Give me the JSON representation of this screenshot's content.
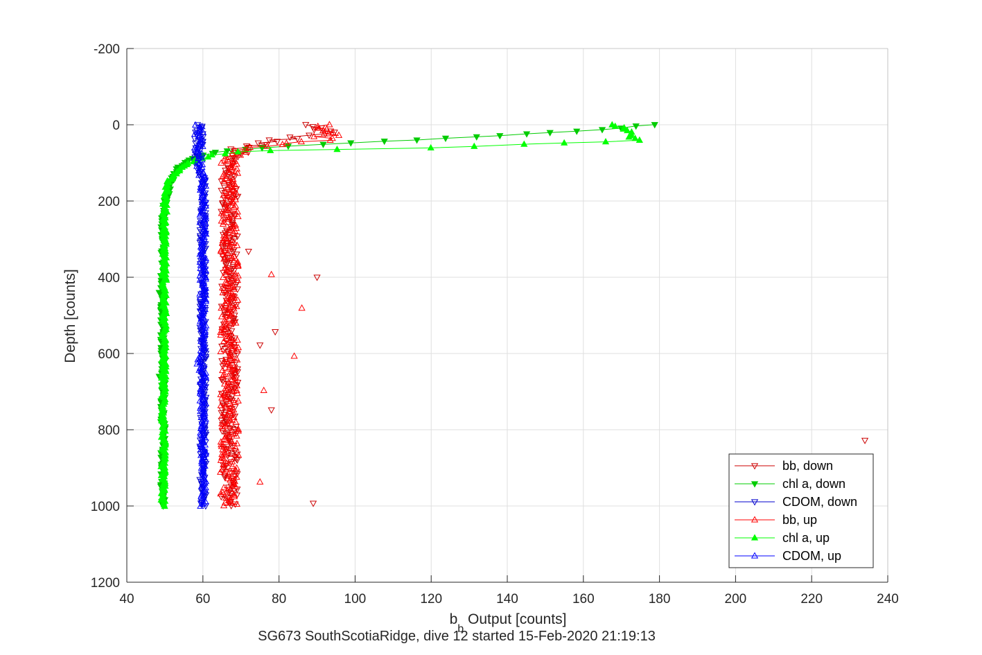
{
  "chart_data": {
    "type": "scatter",
    "xlabel_main": "b",
    "xlabel_sub": "b",
    "xlabel_rest": " Output [counts]",
    "ylabel": "Depth [counts]",
    "subtitle": "SG673 SouthScotiaRidge, dive 12 started 15-Feb-2020 21:19:13",
    "xlim": [
      40,
      240
    ],
    "ylim": [
      -200,
      1200
    ],
    "y_reversed": true,
    "grid": true,
    "legend_position": "bottom-right",
    "x_ticks": [
      "40",
      "60",
      "80",
      "100",
      "120",
      "140",
      "160",
      "180",
      "200",
      "220",
      "240"
    ],
    "y_ticks": [
      "-200",
      "0",
      "200",
      "400",
      "600",
      "800",
      "1000",
      "1200"
    ],
    "series": [
      {
        "name": "bb, down",
        "color": "#cc0000",
        "marker": "triangle-down",
        "filled": false,
        "profile": [
          [
            0,
            86
          ],
          [
            10,
            91
          ],
          [
            20,
            93
          ],
          [
            30,
            86
          ],
          [
            40,
            80
          ],
          [
            50,
            75
          ],
          [
            60,
            70
          ],
          [
            80,
            68
          ],
          [
            100,
            67
          ],
          [
            150,
            67
          ],
          [
            200,
            67
          ],
          [
            300,
            67
          ],
          [
            400,
            67
          ],
          [
            500,
            67
          ],
          [
            600,
            67
          ],
          [
            700,
            67
          ],
          [
            800,
            67
          ],
          [
            900,
            67
          ],
          [
            1000,
            67
          ]
        ],
        "spread": 2.2,
        "outliers": [
          [
            234,
            828
          ],
          [
            90,
            400
          ],
          [
            89,
            993
          ],
          [
            79,
            543
          ],
          [
            78,
            748
          ],
          [
            75,
            578
          ],
          [
            72,
            332
          ]
        ]
      },
      {
        "name": "chl a, down",
        "color": "#00cc00",
        "marker": "triangle-down",
        "filled": true,
        "profile": [
          [
            0,
            179
          ],
          [
            10,
            168
          ],
          [
            20,
            152
          ],
          [
            30,
            135
          ],
          [
            40,
            116
          ],
          [
            50,
            95
          ],
          [
            60,
            75
          ],
          [
            70,
            65
          ],
          [
            80,
            60
          ],
          [
            90,
            57
          ],
          [
            100,
            55
          ],
          [
            120,
            53
          ],
          [
            150,
            51.5
          ],
          [
            200,
            50
          ],
          [
            250,
            49.5
          ],
          [
            1000,
            49.5
          ]
        ],
        "spread": 0.6,
        "outliers": [
          [
            48.5,
            440
          ],
          [
            48.5,
            660
          ]
        ]
      },
      {
        "name": "CDOM, down",
        "color": "#0000cc",
        "marker": "triangle-down",
        "filled": false,
        "profile": [
          [
            0,
            59
          ],
          [
            50,
            59
          ],
          [
            100,
            58.5
          ],
          [
            150,
            60
          ],
          [
            1000,
            60
          ]
        ],
        "spread": 0.8,
        "outliers": []
      },
      {
        "name": "bb, up",
        "color": "#ff0000",
        "marker": "triangle-up",
        "filled": false,
        "profile": [
          [
            0,
            90
          ],
          [
            20,
            95
          ],
          [
            40,
            90
          ],
          [
            50,
            83
          ],
          [
            60,
            75
          ],
          [
            70,
            70
          ],
          [
            80,
            68
          ],
          [
            100,
            67
          ],
          [
            200,
            67
          ],
          [
            300,
            67
          ],
          [
            1000,
            67
          ]
        ],
        "spread": 2.4,
        "outliers": [
          [
            86,
            481
          ],
          [
            84,
            607
          ],
          [
            78,
            393
          ],
          [
            76,
            697
          ],
          [
            75,
            937
          ]
        ]
      },
      {
        "name": "chl a, up",
        "color": "#00ff00",
        "marker": "triangle-up",
        "filled": true,
        "profile": [
          [
            0,
            168
          ],
          [
            15,
            172
          ],
          [
            30,
            172
          ],
          [
            40,
            175
          ],
          [
            50,
            150
          ],
          [
            60,
            120
          ],
          [
            65,
            90
          ],
          [
            70,
            70
          ],
          [
            80,
            62
          ],
          [
            100,
            56
          ],
          [
            150,
            51
          ],
          [
            200,
            50
          ],
          [
            1000,
            49.5
          ]
        ],
        "spread": 0.6,
        "outliers": []
      },
      {
        "name": "CDOM, up",
        "color": "#0000ff",
        "marker": "triangle-up",
        "filled": false,
        "profile": [
          [
            0,
            59
          ],
          [
            100,
            59
          ],
          [
            150,
            60
          ],
          [
            600,
            60
          ],
          [
            620,
            59
          ],
          [
            650,
            60
          ],
          [
            1000,
            60
          ]
        ],
        "spread": 0.8,
        "outliers": []
      }
    ]
  }
}
